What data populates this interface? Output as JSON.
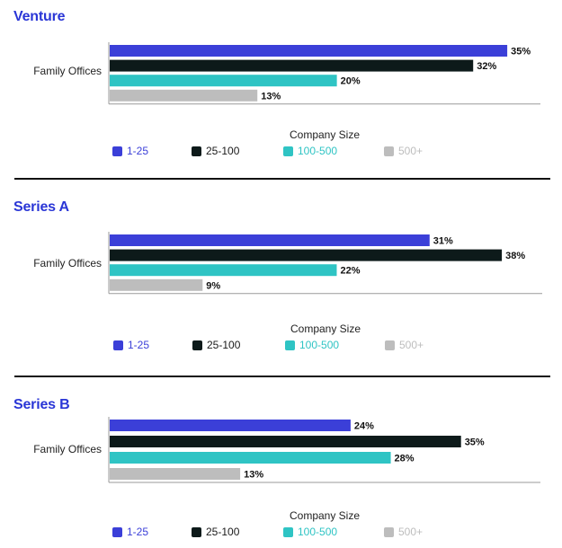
{
  "colors": {
    "title": "#2a36d6",
    "series": [
      "#3b3fd8",
      "#0d1a1a",
      "#2fc4c4",
      "#bdbdbd"
    ],
    "legend_text": [
      "#3b3fd8",
      "#1a1a1a",
      "#2fc4c4",
      "#bdbdbd"
    ]
  },
  "legend": {
    "title": "Company Size",
    "items": [
      "1-25",
      "25-100",
      "100-500",
      "500+"
    ]
  },
  "chart_data": [
    {
      "type": "bar",
      "orientation": "horizontal",
      "title": "Venture",
      "categories": [
        "Family Offices"
      ],
      "series": [
        {
          "name": "1-25",
          "values": [
            35
          ]
        },
        {
          "name": "25-100",
          "values": [
            32
          ]
        },
        {
          "name": "100-500",
          "values": [
            20
          ]
        },
        {
          "name": "500+",
          "values": [
            13
          ]
        }
      ],
      "value_labels": [
        "35%",
        "32%",
        "20%",
        "13%"
      ],
      "xlim": [
        0,
        38
      ],
      "grid": false,
      "legend_position": "bottom"
    },
    {
      "type": "bar",
      "orientation": "horizontal",
      "title": "Series A",
      "categories": [
        "Family Offices"
      ],
      "series": [
        {
          "name": "1-25",
          "values": [
            31
          ]
        },
        {
          "name": "25-100",
          "values": [
            38
          ]
        },
        {
          "name": "100-500",
          "values": [
            22
          ]
        },
        {
          "name": "500+",
          "values": [
            9
          ]
        }
      ],
      "value_labels": [
        "31%",
        "38%",
        "22%",
        "9%"
      ],
      "xlim": [
        0,
        42
      ],
      "grid": false,
      "legend_position": "bottom"
    },
    {
      "type": "bar",
      "orientation": "horizontal",
      "title": "Series B",
      "categories": [
        "Family Offices"
      ],
      "series": [
        {
          "name": "1-25",
          "values": [
            24
          ]
        },
        {
          "name": "25-100",
          "values": [
            35
          ]
        },
        {
          "name": "100-500",
          "values": [
            28
          ]
        },
        {
          "name": "500+",
          "values": [
            13
          ]
        }
      ],
      "value_labels": [
        "24%",
        "35%",
        "28%",
        "13%"
      ],
      "xlim": [
        0,
        43
      ],
      "grid": false,
      "legend_position": "bottom"
    }
  ]
}
